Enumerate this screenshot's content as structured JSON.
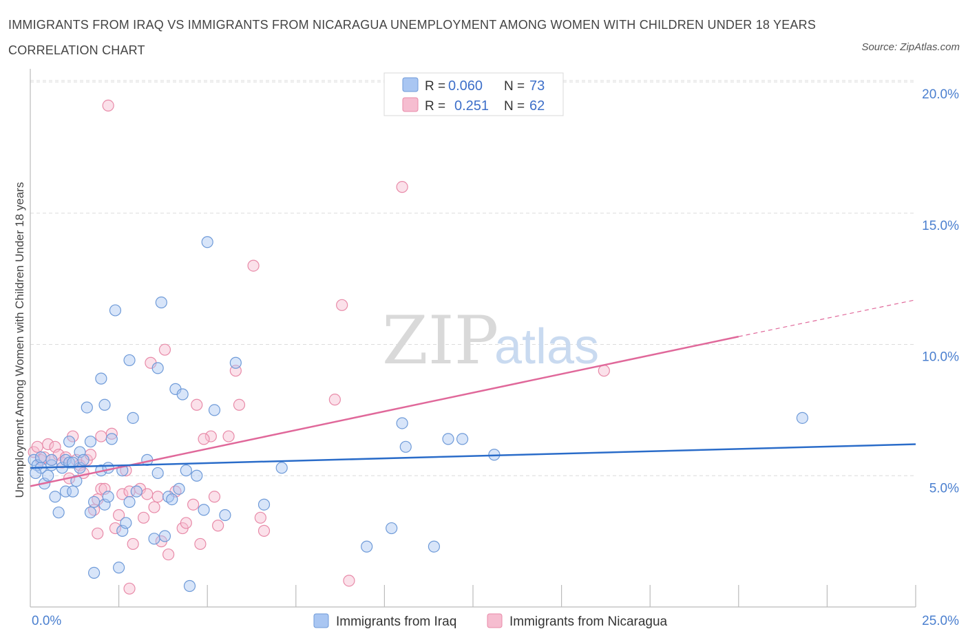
{
  "title": "IMMIGRANTS FROM IRAQ VS IMMIGRANTS FROM NICARAGUA UNEMPLOYMENT AMONG WOMEN WITH CHILDREN UNDER 18 YEARS CORRELATION CHART",
  "source": "Source: ZipAtlas.com",
  "watermark": {
    "zip": "ZIP",
    "atlas": "atlas"
  },
  "colors": {
    "iraq_fill": "#a9c6f2",
    "iraq_stroke": "#6e9ad8",
    "iraq_line": "#2a6cc9",
    "nicaragua_fill": "#f6bdd0",
    "nicaragua_stroke": "#e88aa8",
    "nicaragua_line": "#e0689a",
    "grid": "#dcdcdc",
    "tick_text": "#4a7fcf"
  },
  "stats": [
    {
      "r_label": "R =",
      "r_value": "0.060",
      "n_label": "N =",
      "n_value": "73"
    },
    {
      "r_label": "R =",
      "r_value": "0.251",
      "n_label": "N =",
      "n_value": "62"
    }
  ],
  "legend": {
    "iraq": "Immigrants from Iraq",
    "nicaragua": "Immigrants from Nicaragua"
  },
  "chart_data": {
    "type": "scatter",
    "title": "IMMIGRANTS FROM IRAQ VS IMMIGRANTS FROM NICARAGUA UNEMPLOYMENT AMONG WOMEN WITH CHILDREN UNDER 18 YEARS CORRELATION CHART",
    "xlabel": "",
    "ylabel": "Unemployment Among Women with Children Under 18 years",
    "xlim": [
      0,
      25
    ],
    "ylim": [
      0,
      20.5
    ],
    "x_tick_labels": [
      "0.0%",
      "25.0%"
    ],
    "y_ticks": [
      5,
      10,
      15,
      20
    ],
    "y_tick_labels": [
      "5.0%",
      "10.0%",
      "15.0%",
      "20.0%"
    ],
    "grid": true,
    "legend_position": "bottom-center",
    "series": [
      {
        "name": "Immigrants from Iraq",
        "r": 0.06,
        "n": 73,
        "trend": [
          [
            0,
            5.3
          ],
          [
            25,
            6.2
          ]
        ],
        "points": [
          [
            0.1,
            5.6
          ],
          [
            0.2,
            5.4
          ],
          [
            0.3,
            5.7
          ],
          [
            0.4,
            4.7
          ],
          [
            0.5,
            5.0
          ],
          [
            0.6,
            5.4
          ],
          [
            0.7,
            4.2
          ],
          [
            0.8,
            3.6
          ],
          [
            0.9,
            5.3
          ],
          [
            1.0,
            5.6
          ],
          [
            1.0,
            4.4
          ],
          [
            1.1,
            5.5
          ],
          [
            1.1,
            6.3
          ],
          [
            1.2,
            4.4
          ],
          [
            1.3,
            4.8
          ],
          [
            1.4,
            5.3
          ],
          [
            1.4,
            5.9
          ],
          [
            1.5,
            5.6
          ],
          [
            1.6,
            7.6
          ],
          [
            1.7,
            6.3
          ],
          [
            1.7,
            3.6
          ],
          [
            1.8,
            1.3
          ],
          [
            1.8,
            4.0
          ],
          [
            2.0,
            5.2
          ],
          [
            2.0,
            8.7
          ],
          [
            2.1,
            3.9
          ],
          [
            2.1,
            7.7
          ],
          [
            2.2,
            4.2
          ],
          [
            2.3,
            6.4
          ],
          [
            2.4,
            11.3
          ],
          [
            2.5,
            1.5
          ],
          [
            2.6,
            2.9
          ],
          [
            2.6,
            5.2
          ],
          [
            2.7,
            3.2
          ],
          [
            2.8,
            4.0
          ],
          [
            2.8,
            9.4
          ],
          [
            2.9,
            7.2
          ],
          [
            3.0,
            4.4
          ],
          [
            3.3,
            5.6
          ],
          [
            3.5,
            2.6
          ],
          [
            3.6,
            9.1
          ],
          [
            3.7,
            11.6
          ],
          [
            3.8,
            2.7
          ],
          [
            3.9,
            4.2
          ],
          [
            4.0,
            4.1
          ],
          [
            4.1,
            8.3
          ],
          [
            4.2,
            4.5
          ],
          [
            4.3,
            8.1
          ],
          [
            4.4,
            5.2
          ],
          [
            4.5,
            0.8
          ],
          [
            4.7,
            5.0
          ],
          [
            4.9,
            3.7
          ],
          [
            5.0,
            13.9
          ],
          [
            5.2,
            7.5
          ],
          [
            5.5,
            3.5
          ],
          [
            5.8,
            9.3
          ],
          [
            6.6,
            3.9
          ],
          [
            7.1,
            5.3
          ],
          [
            9.5,
            2.3
          ],
          [
            10.2,
            3.0
          ],
          [
            10.5,
            7.0
          ],
          [
            10.6,
            6.1
          ],
          [
            11.4,
            2.3
          ],
          [
            11.8,
            6.4
          ],
          [
            12.2,
            6.4
          ],
          [
            13.1,
            5.8
          ],
          [
            21.8,
            7.2
          ],
          [
            0.3,
            5.3
          ],
          [
            0.15,
            5.1
          ],
          [
            0.6,
            5.6
          ],
          [
            1.2,
            5.5
          ],
          [
            2.2,
            5.3
          ],
          [
            3.6,
            5.1
          ]
        ]
      },
      {
        "name": "Immigrants from Nicaragua",
        "r": 0.251,
        "n": 62,
        "trend": [
          [
            0,
            4.6
          ],
          [
            20,
            10.3
          ]
        ],
        "trend_extension": [
          [
            20,
            10.3
          ],
          [
            25,
            11.7
          ]
        ],
        "points": [
          [
            0.1,
            5.9
          ],
          [
            0.2,
            6.1
          ],
          [
            0.3,
            5.6
          ],
          [
            0.4,
            5.7
          ],
          [
            0.5,
            6.2
          ],
          [
            0.6,
            5.6
          ],
          [
            0.7,
            6.1
          ],
          [
            0.8,
            5.8
          ],
          [
            0.9,
            5.5
          ],
          [
            1.0,
            5.7
          ],
          [
            1.1,
            4.9
          ],
          [
            1.2,
            6.5
          ],
          [
            1.3,
            5.6
          ],
          [
            1.4,
            5.4
          ],
          [
            1.5,
            5.1
          ],
          [
            1.6,
            5.6
          ],
          [
            1.7,
            5.8
          ],
          [
            1.8,
            3.7
          ],
          [
            1.9,
            2.8
          ],
          [
            1.9,
            4.1
          ],
          [
            2.0,
            6.5
          ],
          [
            2.0,
            4.5
          ],
          [
            2.1,
            4.5
          ],
          [
            2.2,
            19.1
          ],
          [
            2.3,
            6.6
          ],
          [
            2.4,
            3.0
          ],
          [
            2.5,
            3.5
          ],
          [
            2.6,
            4.3
          ],
          [
            2.7,
            5.2
          ],
          [
            2.8,
            4.4
          ],
          [
            2.8,
            0.7
          ],
          [
            2.9,
            2.4
          ],
          [
            3.1,
            4.5
          ],
          [
            3.2,
            3.4
          ],
          [
            3.3,
            4.3
          ],
          [
            3.4,
            9.3
          ],
          [
            3.5,
            3.8
          ],
          [
            3.6,
            4.2
          ],
          [
            3.7,
            2.5
          ],
          [
            3.8,
            9.8
          ],
          [
            3.9,
            2.0
          ],
          [
            4.1,
            4.4
          ],
          [
            4.3,
            3.0
          ],
          [
            4.4,
            3.2
          ],
          [
            4.6,
            3.9
          ],
          [
            4.7,
            7.7
          ],
          [
            4.8,
            2.4
          ],
          [
            5.1,
            6.5
          ],
          [
            5.3,
            3.1
          ],
          [
            5.6,
            6.5
          ],
          [
            5.8,
            9.0
          ],
          [
            5.9,
            7.7
          ],
          [
            6.3,
            13.0
          ],
          [
            6.5,
            3.4
          ],
          [
            6.6,
            2.9
          ],
          [
            8.6,
            7.9
          ],
          [
            8.8,
            11.5
          ],
          [
            9.0,
            1.0
          ],
          [
            10.5,
            16.0
          ],
          [
            16.2,
            9.0
          ],
          [
            5.2,
            4.2
          ],
          [
            4.9,
            6.4
          ]
        ]
      }
    ]
  }
}
